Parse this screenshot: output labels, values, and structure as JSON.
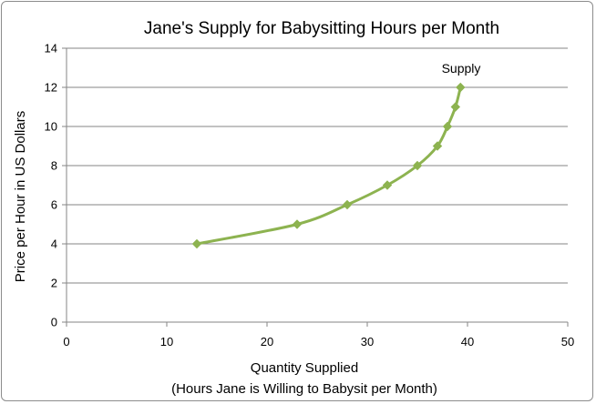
{
  "chart_data": {
    "type": "line",
    "title": "Jane's Supply for Babysitting Hours per Month",
    "xlabel": "Quantity Supplied",
    "xlabel_sub": "(Hours Jane is Willing to Babysit per Month)",
    "ylabel": "Price per Hour in US Dollars",
    "xlim": [
      0,
      50
    ],
    "ylim": [
      0,
      14
    ],
    "xticks": [
      0,
      10,
      20,
      30,
      40,
      50
    ],
    "yticks": [
      0,
      2,
      4,
      6,
      8,
      10,
      12,
      14
    ],
    "grid": "horizontal",
    "legend": "none",
    "annotation": "Supply",
    "series": [
      {
        "name": "Supply",
        "color": "#8db350",
        "points": [
          {
            "x": 13,
            "y": 4
          },
          {
            "x": 23,
            "y": 5
          },
          {
            "x": 28,
            "y": 6
          },
          {
            "x": 32,
            "y": 7
          },
          {
            "x": 35,
            "y": 8
          },
          {
            "x": 37,
            "y": 9
          },
          {
            "x": 38,
            "y": 10
          },
          {
            "x": 38.8,
            "y": 11
          },
          {
            "x": 39.3,
            "y": 12
          }
        ]
      }
    ]
  }
}
